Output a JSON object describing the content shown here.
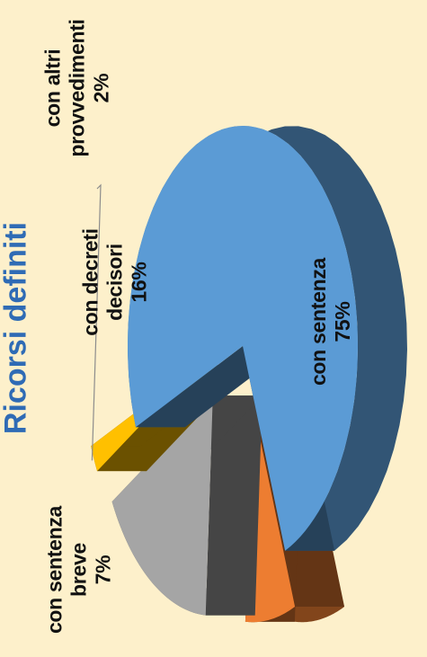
{
  "chart_data": {
    "type": "pie",
    "title": "Ricorsi definiti",
    "slices": [
      {
        "label": "con sentenza",
        "value": 75,
        "value_label": "75%",
        "color": "#5B9BD5"
      },
      {
        "label": "con sentenza breve",
        "value": 7,
        "value_label": "7%",
        "color": "#ED7D31"
      },
      {
        "label": "con decreti decisori",
        "value": 16,
        "value_label": "16%",
        "color": "#A5A5A5"
      },
      {
        "label": "con altri provvedimenti",
        "value": 2,
        "value_label": "2%",
        "color": "#FFC000"
      }
    ],
    "legend": "none",
    "style": "3d-exploded"
  },
  "labels": {
    "sentenza_l1": "con sentenza",
    "sentenza_pct": "75%",
    "breve_l1": "con sentenza",
    "breve_l2": "breve",
    "breve_pct": "7%",
    "decreti_l1": "con decreti",
    "decreti_l2": "decisori",
    "decreti_pct": "16%",
    "altri_l1": "con altri",
    "altri_l2": "provvedimenti",
    "altri_pct": "2%"
  }
}
